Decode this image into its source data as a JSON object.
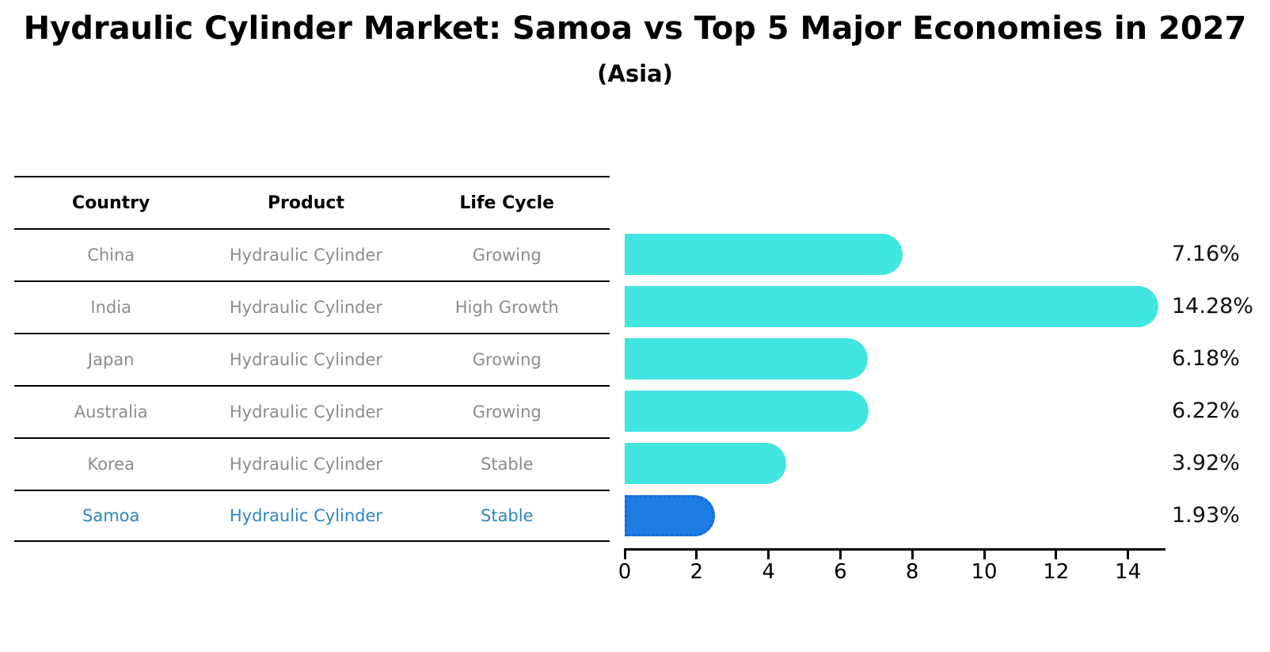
{
  "page": {
    "title": "Hydraulic Cylinder Market: Samoa vs Top 5 Major Economies in 2027",
    "subtitle": "(Asia)"
  },
  "table": {
    "headers": [
      "Country",
      "Product",
      "Life Cycle"
    ],
    "rows": [
      {
        "country": "China",
        "product": "Hydraulic Cylinder",
        "life_cycle": "Growing",
        "highlight": false
      },
      {
        "country": "India",
        "product": "Hydraulic Cylinder",
        "life_cycle": "High Growth",
        "highlight": false
      },
      {
        "country": "Japan",
        "product": "Hydraulic Cylinder",
        "life_cycle": "Growing",
        "highlight": false
      },
      {
        "country": "Australia",
        "product": "Hydraulic Cylinder",
        "life_cycle": "Growing",
        "highlight": false
      },
      {
        "country": "Korea",
        "product": "Hydraulic Cylinder",
        "life_cycle": "Stable",
        "highlight": false
      },
      {
        "country": "Samoa",
        "product": "Hydraulic Cylinder",
        "life_cycle": "Stable",
        "highlight": true
      }
    ]
  },
  "chart_data": {
    "type": "bar",
    "orientation": "horizontal",
    "title": "Hydraulic Cylinder Market: Samoa vs Top 5 Major Economies in 2027",
    "subtitle": "(Asia)",
    "categories": [
      "China",
      "India",
      "Japan",
      "Australia",
      "Korea",
      "Samoa"
    ],
    "values": [
      7.16,
      14.28,
      6.18,
      6.22,
      3.92,
      1.93
    ],
    "value_labels": [
      "7.16%",
      "14.28%",
      "6.18%",
      "6.22%",
      "3.92%",
      "1.93%"
    ],
    "highlight_index": 5,
    "xlim": [
      0,
      15
    ],
    "x_ticks": [
      0,
      2,
      4,
      6,
      8,
      10,
      12,
      14
    ],
    "grid": false,
    "legend": null
  },
  "colors": {
    "bar_default": "#42E6E0",
    "bar_highlight": "#1E7CE3",
    "bar_highlight_border": "#1668D6",
    "highlight_text": "#2E86C1",
    "table_text": "#8C8C8C",
    "header_text": "#000000",
    "axis": "#000000",
    "value_label_text": "#111111"
  }
}
